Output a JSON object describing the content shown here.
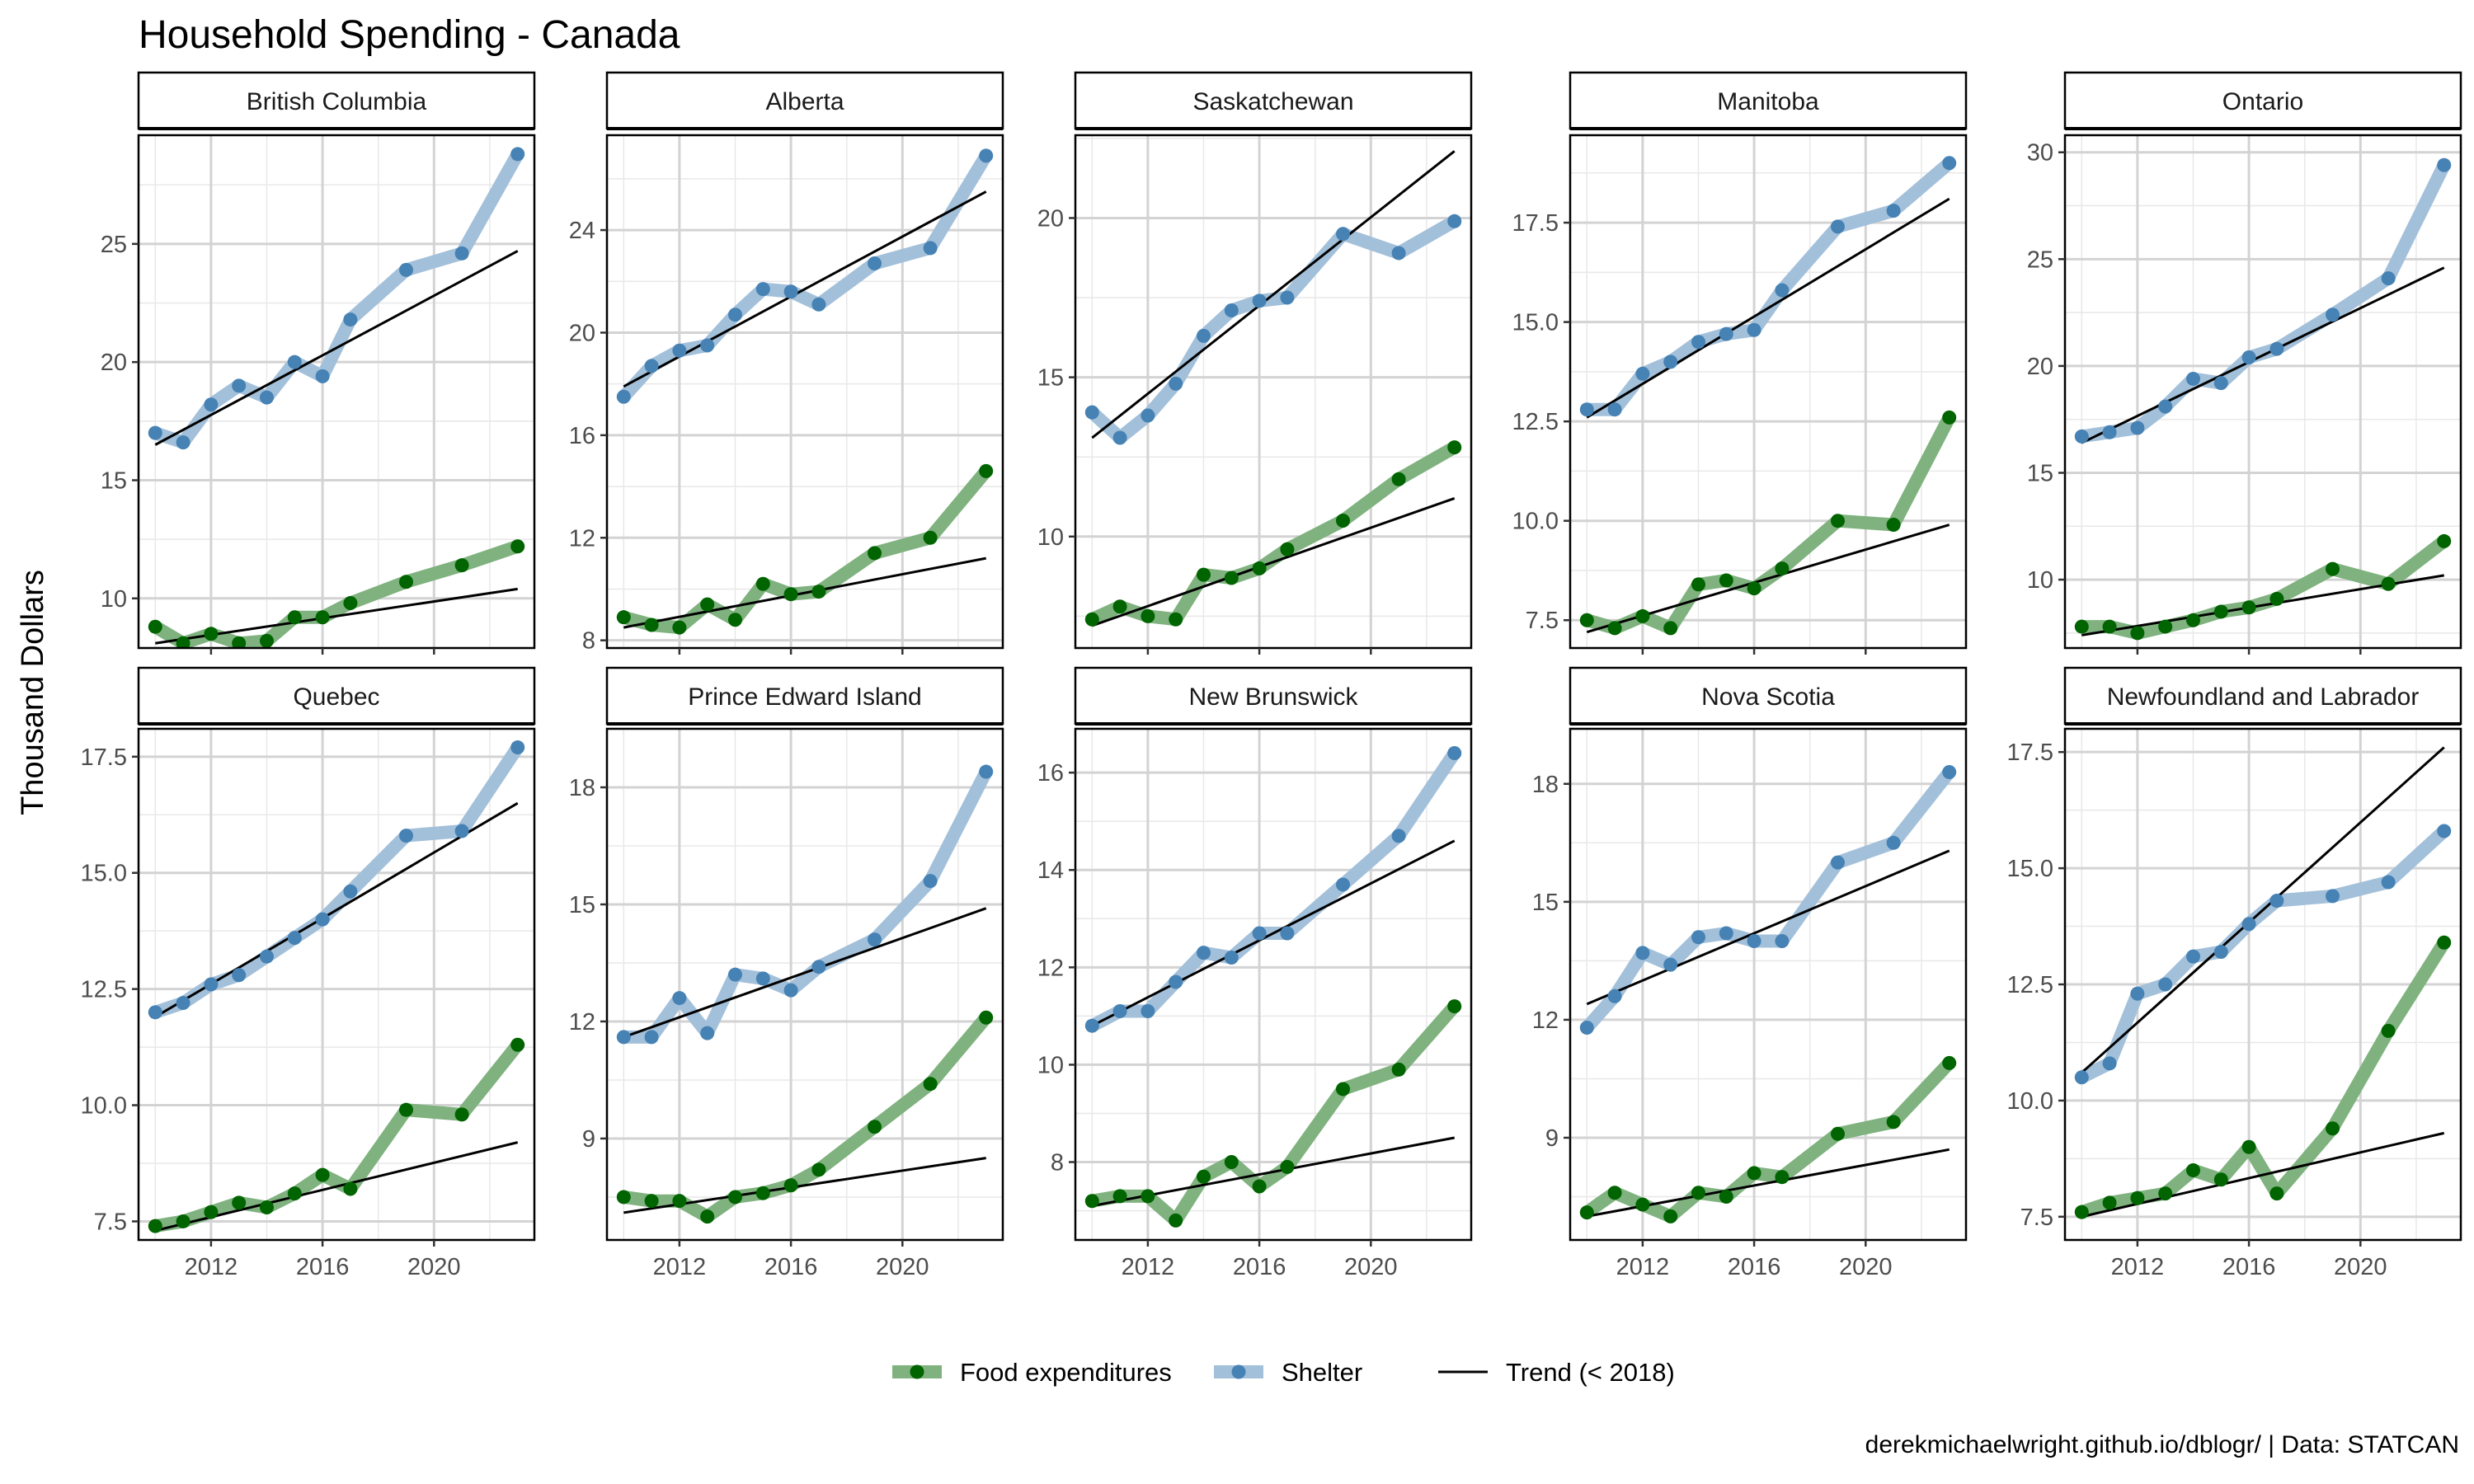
{
  "title": "Household Spending - Canada",
  "ylabel": "Thousand Dollars",
  "caption": "derekmichaelwright.github.io/dblogr/ | Data: STATCAN",
  "legend": {
    "placement": "bottom",
    "items": [
      {
        "label": "Food expenditures",
        "kind": "food"
      },
      {
        "label": "Shelter",
        "kind": "shelter"
      },
      {
        "label": "Trend (< 2018)",
        "kind": "trend"
      }
    ]
  },
  "colors": {
    "food_point": "#006400",
    "food_line": "#7FB27F",
    "shelter_point": "#4682B4",
    "shelter_line": "#A3C0DA",
    "trend": "#000000",
    "grid_major": "#D3D3D3",
    "grid_minor": "#E8E8E8",
    "strip_bg": "#FFFFFF",
    "panel_border": "#000000"
  },
  "chart_data": {
    "type": "line",
    "facet_layout": "5 columns x 2 rows, free y scales, shared x axis",
    "x_axis": {
      "ticks": [
        2012,
        2016,
        2020
      ],
      "range": [
        2009.4,
        2023.6
      ]
    },
    "years": [
      2010,
      2011,
      2012,
      2013,
      2014,
      2015,
      2016,
      2017,
      2019,
      2021,
      2023
    ],
    "series_names": [
      "Food expenditures",
      "Shelter",
      "Trend (< 2018)"
    ],
    "panels": [
      {
        "name": "British Columbia",
        "ylim": [
          7.9,
          29.6
        ],
        "yticks": [
          10,
          15,
          20,
          25
        ],
        "ytick_labels": [
          "10",
          "15",
          "20",
          "25"
        ],
        "food": [
          8.8,
          8.1,
          8.5,
          8.1,
          8.2,
          9.2,
          9.2,
          9.8,
          10.7,
          11.4,
          12.2
        ],
        "shelter": [
          17.0,
          16.6,
          18.2,
          19.0,
          18.5,
          20.0,
          19.4,
          21.8,
          23.9,
          24.6,
          28.8
        ],
        "trend_food": [
          8.1,
          10.4
        ],
        "trend_shelter": [
          16.5,
          24.7
        ]
      },
      {
        "name": "Alberta",
        "ylim": [
          7.7,
          27.7
        ],
        "yticks": [
          8,
          12,
          16,
          20,
          24
        ],
        "ytick_labels": [
          "8",
          "12",
          "16",
          "20",
          "24"
        ],
        "food": [
          8.9,
          8.6,
          8.5,
          9.4,
          8.8,
          10.2,
          9.8,
          9.9,
          11.4,
          12.0,
          14.6
        ],
        "shelter": [
          17.5,
          18.7,
          19.3,
          19.5,
          20.7,
          21.7,
          21.6,
          21.1,
          22.7,
          23.3,
          26.9
        ],
        "trend_food": [
          8.5,
          11.2
        ],
        "trend_shelter": [
          17.9,
          25.5
        ]
      },
      {
        "name": "Saskatchewan",
        "ylim": [
          6.5,
          22.6
        ],
        "yticks": [
          10,
          15,
          20
        ],
        "ytick_labels": [
          "10",
          "15",
          "20"
        ],
        "food": [
          7.4,
          7.8,
          7.5,
          7.4,
          8.8,
          8.7,
          9.0,
          9.6,
          10.5,
          11.8,
          12.8
        ],
        "shelter": [
          13.9,
          13.1,
          13.8,
          14.8,
          16.3,
          17.1,
          17.4,
          17.5,
          19.5,
          18.9,
          19.9
        ],
        "trend_food": [
          7.2,
          11.2
        ],
        "trend_shelter": [
          13.1,
          22.1
        ]
      },
      {
        "name": "Manitoba",
        "ylim": [
          6.8,
          19.7
        ],
        "yticks": [
          7.5,
          10.0,
          12.5,
          15.0,
          17.5
        ],
        "ytick_labels": [
          "7.5",
          "10.0",
          "12.5",
          "15.0",
          "17.5"
        ],
        "food": [
          7.5,
          7.3,
          7.6,
          7.3,
          8.4,
          8.5,
          8.3,
          8.8,
          10.0,
          9.9,
          12.6
        ],
        "shelter": [
          12.8,
          12.8,
          13.7,
          14.0,
          14.5,
          14.7,
          14.8,
          15.8,
          17.4,
          17.8,
          19.0
        ],
        "trend_food": [
          7.2,
          9.9
        ],
        "trend_shelter": [
          12.6,
          18.1
        ]
      },
      {
        "name": "Ontario",
        "ylim": [
          6.8,
          30.8
        ],
        "yticks": [
          10,
          15,
          20,
          25,
          30
        ],
        "ytick_labels": [
          "10",
          "15",
          "20",
          "25",
          "30"
        ],
        "food": [
          7.8,
          7.8,
          7.5,
          7.8,
          8.1,
          8.5,
          8.7,
          9.1,
          10.5,
          9.8,
          11.8
        ],
        "shelter": [
          16.7,
          16.9,
          17.1,
          18.1,
          19.4,
          19.2,
          20.4,
          20.8,
          22.4,
          24.1,
          29.4
        ],
        "trend_food": [
          7.4,
          10.2
        ],
        "trend_shelter": [
          16.4,
          24.6
        ]
      },
      {
        "name": "Quebec",
        "ylim": [
          7.1,
          18.1
        ],
        "yticks": [
          7.5,
          10.0,
          12.5,
          15.0,
          17.5
        ],
        "ytick_labels": [
          "7.5",
          "10.0",
          "12.5",
          "15.0",
          "17.5"
        ],
        "food": [
          7.4,
          7.5,
          7.7,
          7.9,
          7.8,
          8.1,
          8.5,
          8.2,
          9.9,
          9.8,
          11.3
        ],
        "shelter": [
          12.0,
          12.2,
          12.6,
          12.8,
          13.2,
          13.6,
          14.0,
          14.6,
          15.8,
          15.9,
          17.7
        ],
        "trend_food": [
          7.3,
          9.2
        ],
        "trend_shelter": [
          11.9,
          16.5
        ]
      },
      {
        "name": "Prince Edward Island",
        "ylim": [
          6.4,
          19.5
        ],
        "yticks": [
          9,
          12,
          15,
          18
        ],
        "ytick_labels": [
          "9",
          "12",
          "15",
          "18"
        ],
        "food": [
          7.5,
          7.4,
          7.4,
          7.0,
          7.5,
          7.6,
          7.8,
          8.2,
          9.3,
          10.4,
          12.1
        ],
        "shelter": [
          11.6,
          11.6,
          12.6,
          11.7,
          13.2,
          13.1,
          12.8,
          13.4,
          14.1,
          15.6,
          18.4
        ],
        "trend_food": [
          7.1,
          8.5
        ],
        "trend_shelter": [
          11.6,
          14.9
        ]
      },
      {
        "name": "New Brunswick",
        "ylim": [
          6.4,
          16.9
        ],
        "yticks": [
          8,
          10,
          12,
          14,
          16
        ],
        "ytick_labels": [
          "8",
          "10",
          "12",
          "14",
          "16"
        ],
        "food": [
          7.2,
          7.3,
          7.3,
          6.8,
          7.7,
          8.0,
          7.5,
          7.9,
          9.5,
          9.9,
          11.2
        ],
        "shelter": [
          10.8,
          11.1,
          11.1,
          11.7,
          12.3,
          12.2,
          12.7,
          12.7,
          13.7,
          14.7,
          16.4
        ],
        "trend_food": [
          7.1,
          8.5
        ],
        "trend_shelter": [
          10.8,
          14.6
        ]
      },
      {
        "name": "Nova Scotia",
        "ylim": [
          6.4,
          19.4
        ],
        "yticks": [
          9,
          12,
          15,
          18
        ],
        "ytick_labels": [
          "9",
          "12",
          "15",
          "18"
        ],
        "food": [
          7.1,
          7.6,
          7.3,
          7.0,
          7.6,
          7.5,
          8.1,
          8.0,
          9.1,
          9.4,
          10.9
        ],
        "shelter": [
          11.8,
          12.6,
          13.7,
          13.4,
          14.1,
          14.2,
          14.0,
          14.0,
          16.0,
          16.5,
          18.3
        ],
        "trend_food": [
          7.0,
          8.7
        ],
        "trend_shelter": [
          12.4,
          16.3
        ]
      },
      {
        "name": "Newfoundland and Labrador",
        "ylim": [
          7.0,
          18.0
        ],
        "yticks": [
          7.5,
          10.0,
          12.5,
          15.0,
          17.5
        ],
        "ytick_labels": [
          "7.5",
          "10.0",
          "12.5",
          "15.0",
          "17.5"
        ],
        "food": [
          7.6,
          7.8,
          7.9,
          8.0,
          8.5,
          8.3,
          9.0,
          8.0,
          9.4,
          11.5,
          13.4
        ],
        "shelter": [
          10.5,
          10.8,
          12.3,
          12.5,
          13.1,
          13.2,
          13.8,
          14.3,
          14.4,
          14.7,
          15.8
        ],
        "trend_food": [
          7.5,
          9.3
        ],
        "trend_shelter": [
          10.6,
          17.6
        ]
      }
    ]
  }
}
